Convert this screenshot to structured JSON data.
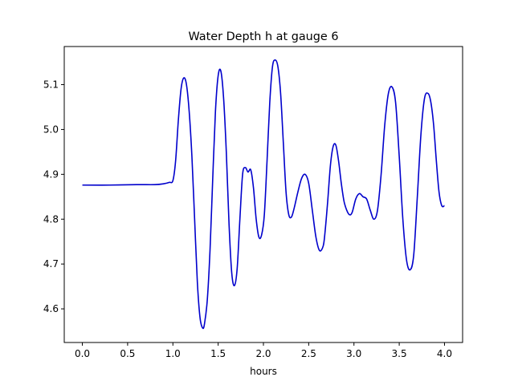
{
  "chart_data": {
    "type": "line",
    "title": "Water Depth h at gauge 6",
    "xlabel": "hours",
    "ylabel": "",
    "xlim": [
      -0.2,
      4.2
    ],
    "ylim": [
      4.525,
      5.185
    ],
    "grid": false,
    "xticks": [
      0.0,
      0.5,
      1.0,
      1.5,
      2.0,
      2.5,
      3.0,
      3.5,
      4.0
    ],
    "xtick_labels": [
      "0.0",
      "0.5",
      "1.0",
      "1.5",
      "2.0",
      "2.5",
      "3.0",
      "3.5",
      "4.0"
    ],
    "yticks": [
      4.6,
      4.7,
      4.8,
      4.9,
      5.0,
      5.1
    ],
    "ytick_labels": [
      "4.6",
      "4.7",
      "4.8",
      "4.9",
      "5.0",
      "5.1"
    ],
    "series_color": "#0000cc",
    "series": [
      {
        "x": [
          0.0,
          0.3,
          0.6,
          0.8,
          0.9,
          0.96,
          1.0,
          1.03,
          1.06,
          1.09,
          1.12,
          1.15,
          1.18,
          1.21,
          1.24,
          1.27,
          1.3,
          1.33,
          1.35,
          1.38,
          1.41,
          1.44,
          1.47,
          1.5,
          1.53,
          1.56,
          1.59,
          1.62,
          1.65,
          1.68,
          1.71,
          1.74,
          1.77,
          1.8,
          1.83,
          1.86,
          1.89,
          1.92,
          1.95,
          1.98,
          2.01,
          2.04,
          2.07,
          2.1,
          2.13,
          2.16,
          2.19,
          2.22,
          2.25,
          2.28,
          2.31,
          2.34,
          2.38,
          2.42,
          2.46,
          2.5,
          2.54,
          2.58,
          2.62,
          2.66,
          2.68,
          2.71,
          2.74,
          2.77,
          2.8,
          2.83,
          2.86,
          2.89,
          2.92,
          2.95,
          2.98,
          3.02,
          3.06,
          3.1,
          3.14,
          3.18,
          3.22,
          3.26,
          3.3,
          3.34,
          3.38,
          3.42,
          3.46,
          3.5,
          3.54,
          3.58,
          3.62,
          3.66,
          3.7,
          3.74,
          3.78,
          3.82,
          3.85,
          3.88,
          3.91,
          3.94,
          3.97,
          4.0
        ],
        "y": [
          4.876,
          4.876,
          4.877,
          4.877,
          4.879,
          4.882,
          4.886,
          4.93,
          5.02,
          5.09,
          5.115,
          5.1,
          5.04,
          4.94,
          4.8,
          4.66,
          4.58,
          4.557,
          4.568,
          4.62,
          4.73,
          4.89,
          5.04,
          5.12,
          5.13,
          5.07,
          4.95,
          4.79,
          4.68,
          4.652,
          4.69,
          4.8,
          4.9,
          4.915,
          4.905,
          4.91,
          4.87,
          4.8,
          4.76,
          4.765,
          4.81,
          4.93,
          5.06,
          5.14,
          5.155,
          5.14,
          5.08,
          4.97,
          4.86,
          4.81,
          4.805,
          4.825,
          4.86,
          4.89,
          4.9,
          4.88,
          4.82,
          4.76,
          4.73,
          4.74,
          4.77,
          4.84,
          4.92,
          4.962,
          4.965,
          4.93,
          4.88,
          4.84,
          4.82,
          4.81,
          4.815,
          4.845,
          4.857,
          4.85,
          4.845,
          4.82,
          4.8,
          4.82,
          4.9,
          5.01,
          5.08,
          5.095,
          5.06,
          4.94,
          4.8,
          4.71,
          4.687,
          4.72,
          4.85,
          4.99,
          5.07,
          5.08,
          5.06,
          5.01,
          4.93,
          4.86,
          4.83,
          4.83
        ]
      }
    ]
  }
}
